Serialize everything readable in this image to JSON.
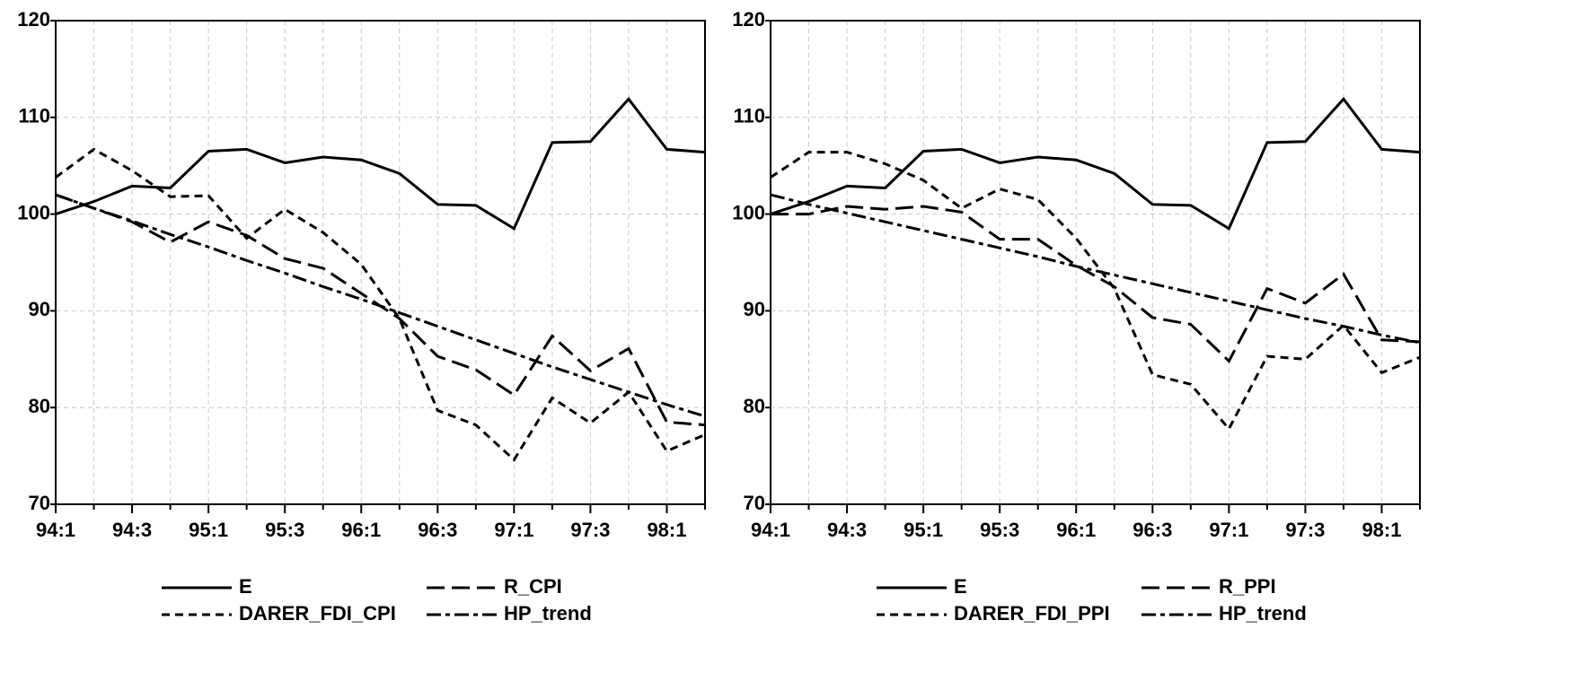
{
  "chart_data": [
    {
      "type": "line",
      "categories": [
        "94:1",
        null,
        "94:3",
        null,
        "95:1",
        null,
        "95:3",
        null,
        "96:1",
        null,
        "96:3",
        null,
        "97:1",
        null,
        "97:3",
        null,
        "98:1",
        null
      ],
      "series": [
        {
          "name": "E",
          "color": "#000000",
          "dash": "solid",
          "values": [
            100,
            101.3,
            102.9,
            102.7,
            106.5,
            106.7,
            105.3,
            105.9,
            105.6,
            104.2,
            101.0,
            100.9,
            98.5,
            107.4,
            107.5,
            111.9,
            106.7,
            106.4
          ]
        },
        {
          "name": "R_CPI",
          "color": "#000000",
          "dash": "long",
          "values": [
            102,
            100.6,
            99.2,
            97.1,
            99.2,
            97.8,
            95.4,
            94.4,
            91.8,
            89.2,
            85.3,
            83.9,
            81.3,
            87.4,
            83.8,
            86.1,
            78.5,
            78.2
          ]
        },
        {
          "name": "DARER_FDI_CPI",
          "color": "#000000",
          "dash": "short",
          "values": [
            103.8,
            106.7,
            104.5,
            101.8,
            101.9,
            97.5,
            100.5,
            98.1,
            94.8,
            89.2,
            79.7,
            78.2,
            74.6,
            81.0,
            78.4,
            81.6,
            75.5,
            77.2
          ]
        },
        {
          "name": "HP_trend",
          "color": "#000000",
          "dash": "dashdot",
          "values": [
            102.0,
            100.6,
            99.3,
            97.9,
            96.6,
            95.2,
            93.9,
            92.5,
            91.2,
            89.8,
            88.4,
            87.0,
            85.6,
            84.2,
            82.9,
            81.6,
            80.3,
            79.1
          ]
        }
      ],
      "ylim": [
        70,
        120
      ],
      "yticks": [
        70,
        80,
        90,
        100,
        110,
        120
      ],
      "grid": true
    },
    {
      "type": "line",
      "categories": [
        "94:1",
        null,
        "94:3",
        null,
        "95:1",
        null,
        "95:3",
        null,
        "96:1",
        null,
        "96:3",
        null,
        "97:1",
        null,
        "97:3",
        null,
        "98:1",
        null
      ],
      "series": [
        {
          "name": "E",
          "color": "#000000",
          "dash": "solid",
          "values": [
            100,
            101.3,
            102.9,
            102.7,
            106.5,
            106.7,
            105.3,
            105.9,
            105.6,
            104.2,
            101.0,
            100.9,
            98.5,
            107.4,
            107.5,
            111.9,
            106.7,
            106.4
          ]
        },
        {
          "name": "R_PPI",
          "color": "#000000",
          "dash": "long",
          "values": [
            100,
            100.0,
            100.8,
            100.5,
            100.8,
            100.2,
            97.4,
            97.4,
            94.7,
            92.5,
            89.3,
            88.6,
            84.8,
            92.3,
            90.8,
            93.8,
            87.0,
            86.8
          ]
        },
        {
          "name": "DARER_FDI_PPI",
          "color": "#000000",
          "dash": "short",
          "values": [
            103.8,
            106.4,
            106.4,
            105.2,
            103.5,
            100.6,
            102.6,
            101.5,
            97.5,
            92.3,
            83.4,
            82.4,
            77.8,
            85.3,
            85.0,
            88.5,
            83.6,
            85.2
          ]
        },
        {
          "name": "HP_trend",
          "color": "#000000",
          "dash": "dashdot",
          "values": [
            102.0,
            101.0,
            100.1,
            99.2,
            98.3,
            97.4,
            96.5,
            95.6,
            94.6,
            93.7,
            92.8,
            91.9,
            91.0,
            90.1,
            89.2,
            88.4,
            87.5,
            86.7
          ]
        }
      ],
      "ylim": [
        70,
        120
      ],
      "yticks": [
        70,
        80,
        90,
        100,
        110,
        120
      ],
      "grid": true
    }
  ]
}
